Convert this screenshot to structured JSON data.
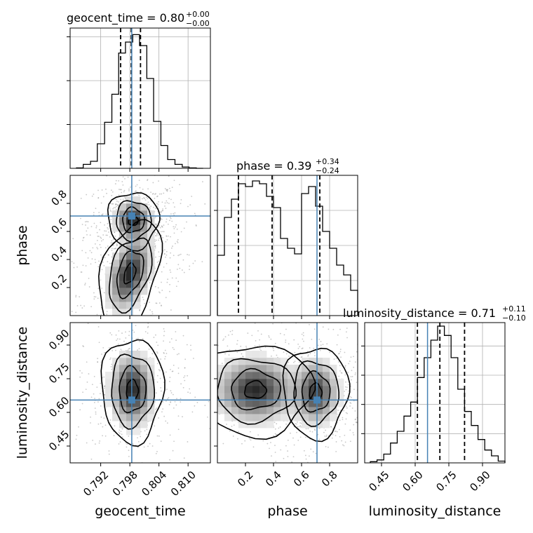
{
  "figure": {
    "type": "corner-plot",
    "parameters": [
      "geocent_time",
      "phase",
      "luminosity_distance"
    ],
    "truth_color": "#4682b4"
  },
  "chart_data": [
    {
      "type": "histogram",
      "panel": "geocent_time",
      "title_name": "geocent_time",
      "title_value": "0.80",
      "title_plus": "+0.00",
      "title_minus": "−0.00",
      "x_range": [
        0.7857,
        0.8146
      ],
      "x_ticks": [
        0.792,
        0.798,
        0.804,
        0.81
      ],
      "x_tick_labels": [
        "0.792",
        "0.798",
        "0.804",
        "0.810"
      ],
      "x_label": "geocent_time",
      "y_max": 3200,
      "y_ticks": [
        0,
        1000,
        2000,
        3000
      ],
      "y_tick_labels_shown": false,
      "bin_edges": [
        0.787,
        0.7884,
        0.7899,
        0.7913,
        0.7928,
        0.7943,
        0.7957,
        0.7971,
        0.7986,
        0.8,
        0.8015,
        0.8029,
        0.8044,
        0.8058,
        0.8073,
        0.8088,
        0.8102,
        0.8117,
        0.8131
      ],
      "counts": [
        10,
        90,
        160,
        560,
        1050,
        1690,
        2630,
        2880,
        3050,
        2800,
        2050,
        1070,
        520,
        200,
        90,
        30,
        10,
        0
      ],
      "quantiles": [
        0.7961,
        0.7983,
        0.8002
      ],
      "truth": 0.7984
    },
    {
      "type": "histogram",
      "panel": "phase",
      "title_name": "phase",
      "title_value": "0.39",
      "title_plus": "+0.34",
      "title_minus": "−0.24",
      "x_range": [
        0.0,
        1.0
      ],
      "x_ticks": [
        0.2,
        0.4,
        0.6,
        0.8
      ],
      "x_tick_labels": [
        "0.2",
        "0.4",
        "0.6",
        "0.8"
      ],
      "x_label": "phase",
      "y_max": 1000,
      "y_ticks": [
        0,
        250,
        500,
        750
      ],
      "y_tick_labels_shown": false,
      "bin_edges": [
        0.0,
        0.05,
        0.1,
        0.15,
        0.2,
        0.25,
        0.3,
        0.35,
        0.4,
        0.45,
        0.5,
        0.55,
        0.6,
        0.65,
        0.7,
        0.75,
        0.8,
        0.85,
        0.9,
        0.95,
        1.0
      ],
      "counts": [
        430,
        700,
        830,
        940,
        920,
        960,
        940,
        850,
        770,
        550,
        480,
        440,
        870,
        920,
        780,
        600,
        480,
        360,
        290,
        180
      ],
      "quantiles": [
        0.15,
        0.39,
        0.73
      ],
      "truth": 0.71
    },
    {
      "type": "histogram",
      "panel": "luminosity_distance",
      "title_name": "luminosity_distance",
      "title_value": "0.71",
      "title_plus": "+0.11",
      "title_minus": "−0.10",
      "x_range": [
        0.375,
        1.0
      ],
      "x_ticks": [
        0.45,
        0.6,
        0.75,
        0.9
      ],
      "x_tick_labels": [
        "0.45",
        "0.60",
        "0.75",
        "0.90"
      ],
      "x_label": "luminosity_distance",
      "y_max": 1200,
      "y_ticks": [
        0,
        250,
        500,
        750,
        1000
      ],
      "y_tick_labels_shown": false,
      "bin_edges": [
        0.4,
        0.43,
        0.46,
        0.49,
        0.52,
        0.55,
        0.58,
        0.61,
        0.64,
        0.67,
        0.7,
        0.73,
        0.76,
        0.79,
        0.82,
        0.85,
        0.88,
        0.91,
        0.94,
        0.97,
        1.0
      ],
      "counts": [
        10,
        25,
        75,
        170,
        270,
        400,
        520,
        730,
        900,
        1050,
        1170,
        1090,
        900,
        630,
        440,
        320,
        200,
        110,
        60,
        15
      ],
      "quantiles": [
        0.61,
        0.71,
        0.82
      ],
      "truth": 0.655
    },
    {
      "type": "density-contour",
      "panel": "geocent_time-vs-phase",
      "x_param": "geocent_time",
      "y_param": "phase",
      "x_range": [
        0.7857,
        0.8146
      ],
      "y_range": [
        0.0,
        1.0
      ],
      "y_ticks": [
        0.2,
        0.4,
        0.6,
        0.8
      ],
      "y_tick_labels": [
        "0.2",
        "0.4",
        "0.6",
        "0.8"
      ],
      "y_label": "phase",
      "truth": [
        0.7984,
        0.71
      ],
      "modes": [
        {
          "x": 0.7987,
          "y": 0.68,
          "sx": 0.0018,
          "sy": 0.07,
          "tilt": 0.0,
          "weight": 1.0
        },
        {
          "x": 0.798,
          "y": 0.3,
          "sx": 0.0022,
          "sy": 0.12,
          "tilt": 0.6,
          "weight": 1.0
        }
      ],
      "levels": [
        "39%",
        "86%",
        "99%"
      ]
    },
    {
      "type": "density-contour",
      "panel": "geocent_time-vs-luminosity_distance",
      "x_param": "geocent_time",
      "y_param": "luminosity_distance",
      "x_range": [
        0.7857,
        0.8146
      ],
      "y_range": [
        0.375,
        1.0
      ],
      "y_ticks": [
        0.45,
        0.6,
        0.75,
        0.9
      ],
      "y_tick_labels": [
        "0.45",
        "0.60",
        "0.75",
        "0.90"
      ],
      "y_label": "luminosity_distance",
      "truth": [
        0.7984,
        0.655
      ],
      "modes": [
        {
          "x": 0.7985,
          "y": 0.7,
          "sx": 0.0022,
          "sy": 0.08,
          "tilt": 0.0,
          "weight": 1.0
        }
      ],
      "levels": [
        "39%",
        "86%",
        "99%"
      ]
    },
    {
      "type": "density-contour",
      "panel": "phase-vs-luminosity_distance",
      "x_param": "phase",
      "y_param": "luminosity_distance",
      "x_range": [
        0.0,
        1.0
      ],
      "y_range": [
        0.375,
        1.0
      ],
      "truth": [
        0.71,
        0.655
      ],
      "modes": [
        {
          "x": 0.27,
          "y": 0.7,
          "sx": 0.14,
          "sy": 0.07,
          "tilt": 0.0,
          "weight": 1.0
        },
        {
          "x": 0.7,
          "y": 0.69,
          "sx": 0.08,
          "sy": 0.07,
          "tilt": 0.0,
          "weight": 0.9
        }
      ],
      "levels": [
        "39%",
        "86%",
        "99%"
      ]
    }
  ]
}
